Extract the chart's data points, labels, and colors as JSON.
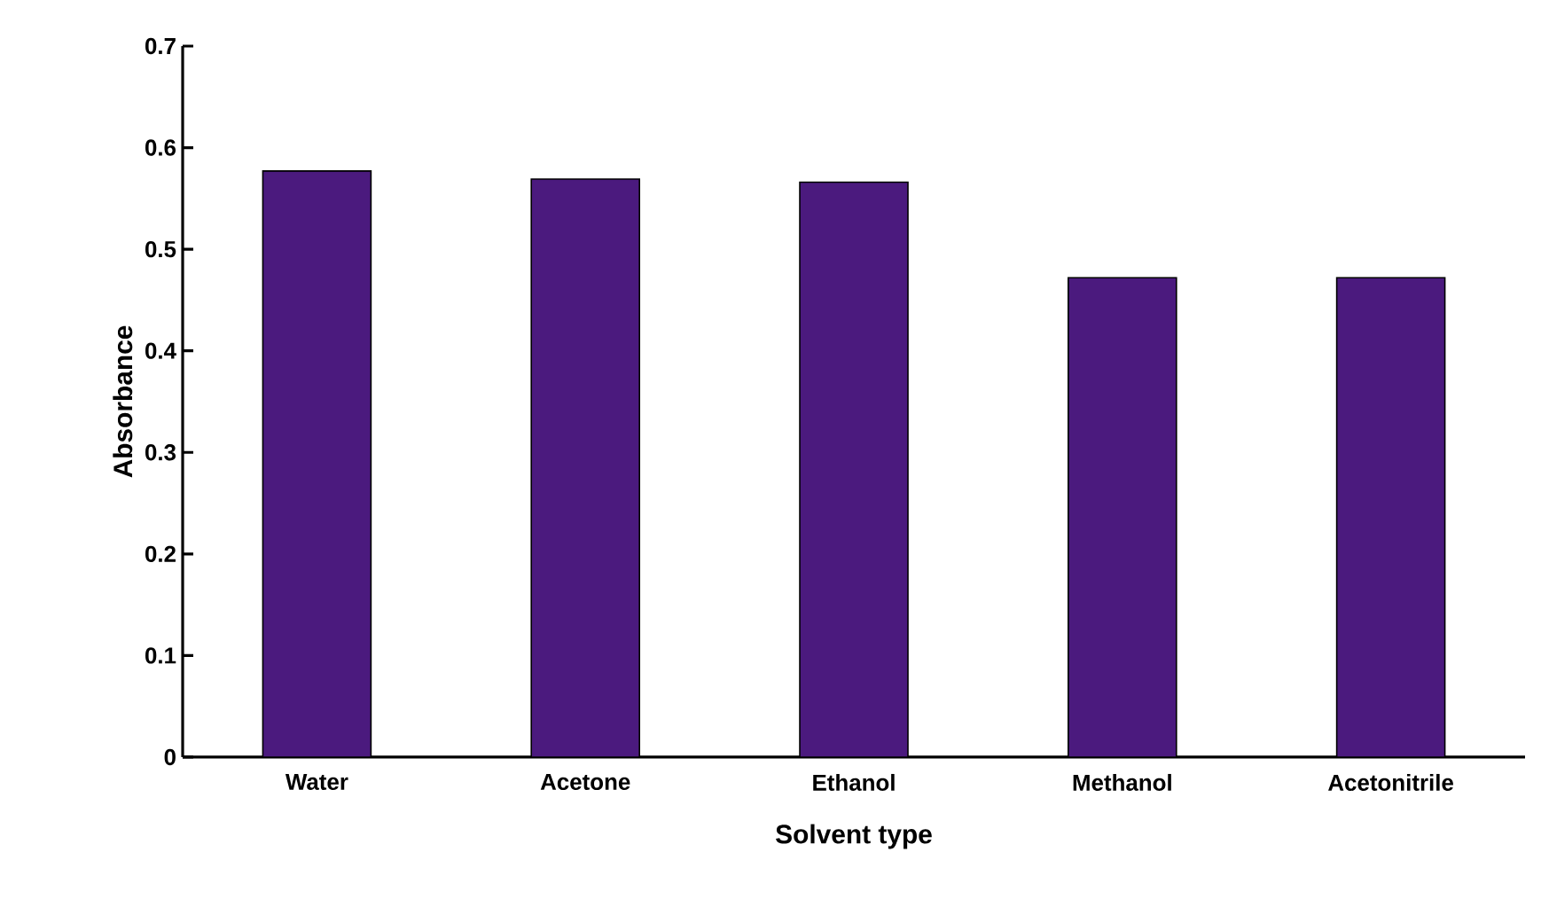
{
  "chart_data": {
    "type": "bar",
    "xlabel": "Solvent type",
    "ylabel": "Absorbance",
    "categories": [
      "Water",
      "Acetone",
      "Ethanol",
      "Methanol",
      "Acetonitrile"
    ],
    "values": [
      0.577,
      0.569,
      0.566,
      0.472,
      0.472
    ],
    "color": "#4b1a7e",
    "ylim": [
      0,
      0.7
    ],
    "yticks": [
      0,
      0.1,
      0.2,
      0.3,
      0.4,
      0.5,
      0.6,
      0.7
    ]
  }
}
